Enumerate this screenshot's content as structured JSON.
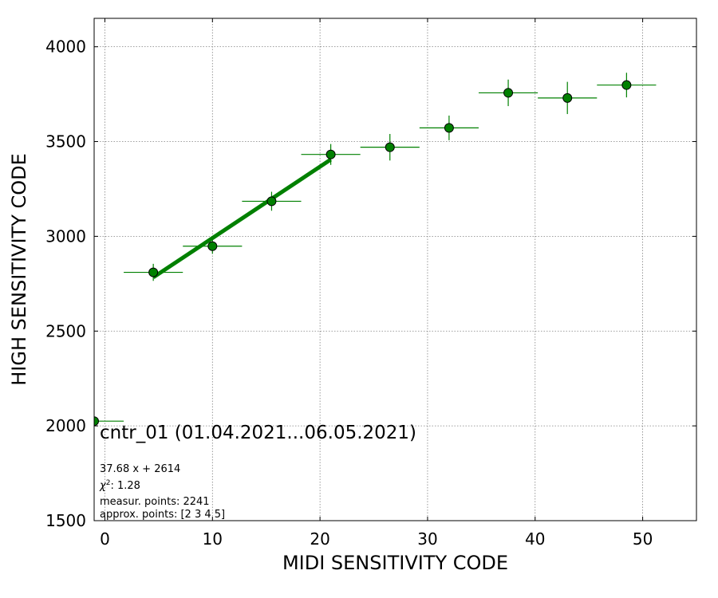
{
  "chart_data": {
    "type": "scatter",
    "xlabel": "MIDI SENSITIVITY CODE",
    "ylabel": "HIGH SENSITIVITY CODE",
    "xlim": [
      -1,
      55
    ],
    "ylim": [
      1500,
      4150
    ],
    "xticks": [
      0,
      10,
      20,
      30,
      40,
      50
    ],
    "yticks": [
      1500,
      2000,
      2500,
      3000,
      3500,
      4000
    ],
    "grid": true,
    "colors": {
      "points": "#008000",
      "fit": "#008000",
      "edge": "#000000",
      "grid": "#808080"
    },
    "series": [
      {
        "type": "errorbar",
        "points": [
          {
            "x": -1.0,
            "y": 2025,
            "xerr": 2.75,
            "yerr": 0
          },
          {
            "x": 4.5,
            "y": 2810,
            "xerr": 2.75,
            "yerr": 45
          },
          {
            "x": 10.0,
            "y": 2948,
            "xerr": 2.75,
            "yerr": 40
          },
          {
            "x": 15.5,
            "y": 3185,
            "xerr": 2.75,
            "yerr": 50
          },
          {
            "x": 21.0,
            "y": 3432,
            "xerr": 2.75,
            "yerr": 55
          },
          {
            "x": 26.5,
            "y": 3470,
            "xerr": 2.75,
            "yerr": 70
          },
          {
            "x": 32.0,
            "y": 3572,
            "xerr": 2.75,
            "yerr": 65
          },
          {
            "x": 37.5,
            "y": 3757,
            "xerr": 2.75,
            "yerr": 70
          },
          {
            "x": 43.0,
            "y": 3730,
            "xerr": 2.75,
            "yerr": 85
          },
          {
            "x": 48.5,
            "y": 3798,
            "xerr": 2.75,
            "yerr": 65
          }
        ]
      },
      {
        "type": "fit-line",
        "slope": 37.68,
        "intercept": 2614,
        "x_range": [
          4.5,
          21.0
        ]
      }
    ],
    "annotations": {
      "title": "cntr_01 (01.04.2021...06.05.2021)",
      "fit_equation": "37.68 x + 2614",
      "chi_label": "χ",
      "chi_exp": "2",
      "chi_value": ": 1.28",
      "measur_points": "measur. points: 2241",
      "approx_points": "approx. points: [2 3 4 5]"
    }
  }
}
